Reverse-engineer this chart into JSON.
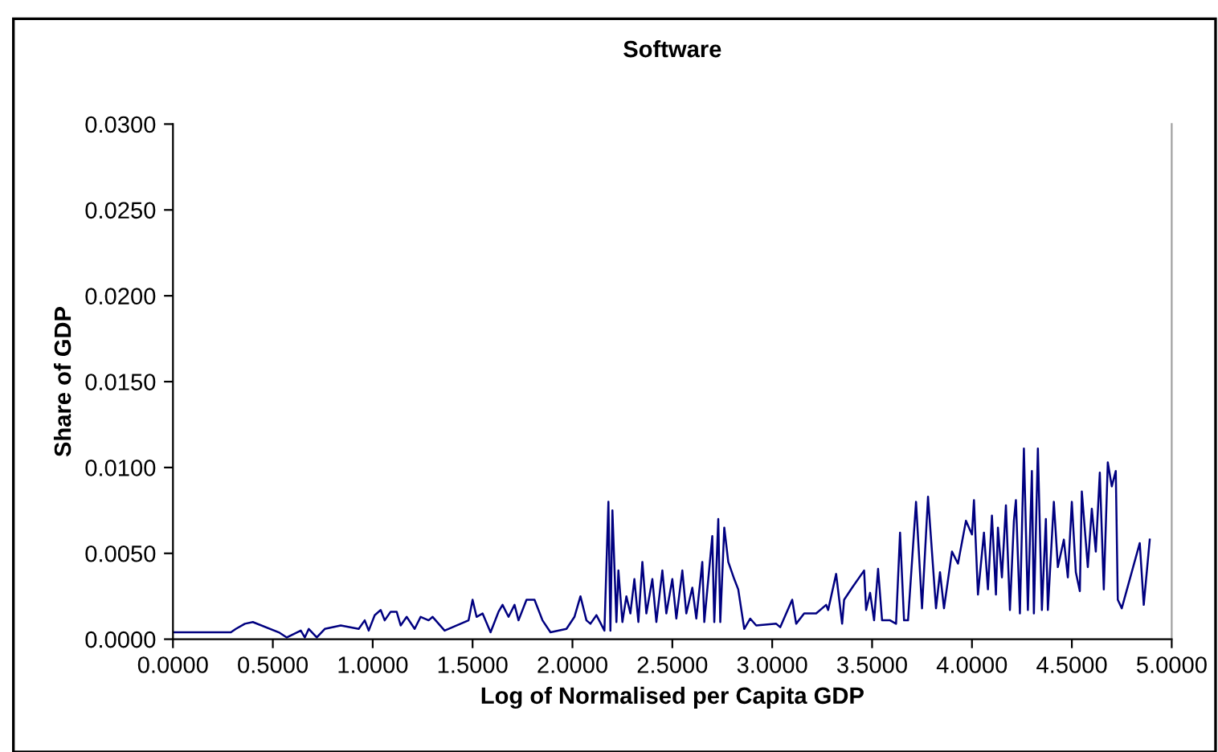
{
  "chart_data": {
    "type": "line",
    "title": "Software",
    "xlabel": "Log of Normalised per Capita GDP",
    "ylabel": "Share of GDP",
    "xlim": [
      0,
      5
    ],
    "ylim": [
      0,
      0.03
    ],
    "xticks": [
      {
        "value": 0,
        "label": "0.0000"
      },
      {
        "value": 0.5,
        "label": "0.5000"
      },
      {
        "value": 1,
        "label": "1.0000"
      },
      {
        "value": 1.5,
        "label": "1.5000"
      },
      {
        "value": 2,
        "label": "2.0000"
      },
      {
        "value": 2.5,
        "label": "2.5000"
      },
      {
        "value": 3,
        "label": "3.0000"
      },
      {
        "value": 3.5,
        "label": "3.5000"
      },
      {
        "value": 4,
        "label": "4.0000"
      },
      {
        "value": 4.5,
        "label": "4.5000"
      },
      {
        "value": 5,
        "label": "5.0000"
      }
    ],
    "yticks": [
      {
        "value": 0,
        "label": "0.0000"
      },
      {
        "value": 0.005,
        "label": "0.0050"
      },
      {
        "value": 0.01,
        "label": "0.0100"
      },
      {
        "value": 0.015,
        "label": "0.0150"
      },
      {
        "value": 0.02,
        "label": "0.0200"
      },
      {
        "value": 0.025,
        "label": "0.0250"
      },
      {
        "value": 0.03,
        "label": "0.0300"
      }
    ],
    "grid": false,
    "legend": false,
    "marker": "none",
    "line_style": "solid",
    "series": [
      {
        "color": "#000080",
        "x": [
          0,
          0.29,
          0.315,
          0.36,
          0.4,
          0.53,
          0.57,
          0.64,
          0.66,
          0.68,
          0.72,
          0.76,
          0.84,
          0.93,
          0.96,
          0.98,
          1.01,
          1.04,
          1.06,
          1.09,
          1.12,
          1.14,
          1.17,
          1.21,
          1.24,
          1.28,
          1.3,
          1.36,
          1.44,
          1.48,
          1.5,
          1.52,
          1.55,
          1.59,
          1.63,
          1.65,
          1.68,
          1.71,
          1.73,
          1.77,
          1.81,
          1.85,
          1.89,
          1.97,
          2.01,
          2.04,
          2.07,
          2.09,
          2.12,
          2.16,
          2.18,
          2.19,
          2.2,
          2.22,
          2.23,
          2.25,
          2.27,
          2.29,
          2.31,
          2.33,
          2.35,
          2.37,
          2.4,
          2.42,
          2.45,
          2.47,
          2.5,
          2.52,
          2.55,
          2.57,
          2.6,
          2.62,
          2.65,
          2.66,
          2.7,
          2.71,
          2.73,
          2.74,
          2.76,
          2.78,
          2.81,
          2.83,
          2.86,
          2.89,
          2.92,
          3.02,
          3.04,
          3.1,
          3.12,
          3.16,
          3.22,
          3.27,
          3.28,
          3.32,
          3.35,
          3.36,
          3.4,
          3.46,
          3.47,
          3.49,
          3.51,
          3.53,
          3.55,
          3.59,
          3.62,
          3.64,
          3.66,
          3.68,
          3.72,
          3.75,
          3.78,
          3.82,
          3.84,
          3.86,
          3.9,
          3.93,
          3.97,
          4.0,
          4.01,
          4.03,
          4.06,
          4.08,
          4.1,
          4.12,
          4.13,
          4.15,
          4.17,
          4.19,
          4.21,
          4.22,
          4.24,
          4.26,
          4.28,
          4.3,
          4.31,
          4.33,
          4.35,
          4.37,
          4.38,
          4.41,
          4.43,
          4.46,
          4.48,
          4.5,
          4.52,
          4.54,
          4.55,
          4.58,
          4.6,
          4.62,
          4.64,
          4.66,
          4.68,
          4.7,
          4.72,
          4.73,
          4.75,
          4.84,
          4.86,
          4.89
        ],
        "values": [
          0.0004,
          0.0004,
          0.0006,
          0.0009,
          0.001,
          0.0004,
          0.0001,
          0.0005,
          0.0001,
          0.0006,
          0.0001,
          0.0006,
          0.0008,
          0.0006,
          0.0011,
          0.0005,
          0.0014,
          0.0017,
          0.0011,
          0.0016,
          0.0016,
          0.0008,
          0.0013,
          0.0006,
          0.0013,
          0.0011,
          0.0013,
          0.0005,
          0.0009,
          0.0011,
          0.0023,
          0.0013,
          0.0015,
          0.0004,
          0.0016,
          0.002,
          0.0013,
          0.002,
          0.0011,
          0.0023,
          0.0023,
          0.0011,
          0.0004,
          0.0006,
          0.0013,
          0.0025,
          0.0011,
          0.0009,
          0.0014,
          0.0005,
          0.008,
          0.0005,
          0.0075,
          0.001,
          0.004,
          0.001,
          0.0025,
          0.0015,
          0.0035,
          0.001,
          0.0045,
          0.0015,
          0.0035,
          0.001,
          0.004,
          0.0015,
          0.0035,
          0.0012,
          0.004,
          0.0015,
          0.003,
          0.0012,
          0.0045,
          0.001,
          0.006,
          0.001,
          0.007,
          0.001,
          0.0065,
          0.0045,
          0.0035,
          0.0029,
          0.0006,
          0.0012,
          0.0008,
          0.0009,
          0.0007,
          0.0023,
          0.0009,
          0.0015,
          0.0015,
          0.002,
          0.0017,
          0.0038,
          0.0009,
          0.0023,
          0.003,
          0.004,
          0.0017,
          0.0027,
          0.0011,
          0.0041,
          0.0011,
          0.0011,
          0.0009,
          0.0062,
          0.0011,
          0.0011,
          0.008,
          0.0018,
          0.0083,
          0.0018,
          0.0039,
          0.0018,
          0.0051,
          0.0044,
          0.0069,
          0.0061,
          0.0081,
          0.0026,
          0.0062,
          0.0029,
          0.0072,
          0.0026,
          0.0065,
          0.0036,
          0.0078,
          0.0017,
          0.0069,
          0.0081,
          0.0015,
          0.0111,
          0.0017,
          0.0098,
          0.0015,
          0.0111,
          0.0017,
          0.007,
          0.0017,
          0.008,
          0.0042,
          0.0058,
          0.0036,
          0.008,
          0.0039,
          0.0028,
          0.0086,
          0.0042,
          0.0076,
          0.0051,
          0.0097,
          0.0029,
          0.0103,
          0.0089,
          0.0098,
          0.0023,
          0.0018,
          0.0056,
          0.002,
          0.0058
        ]
      }
    ]
  }
}
